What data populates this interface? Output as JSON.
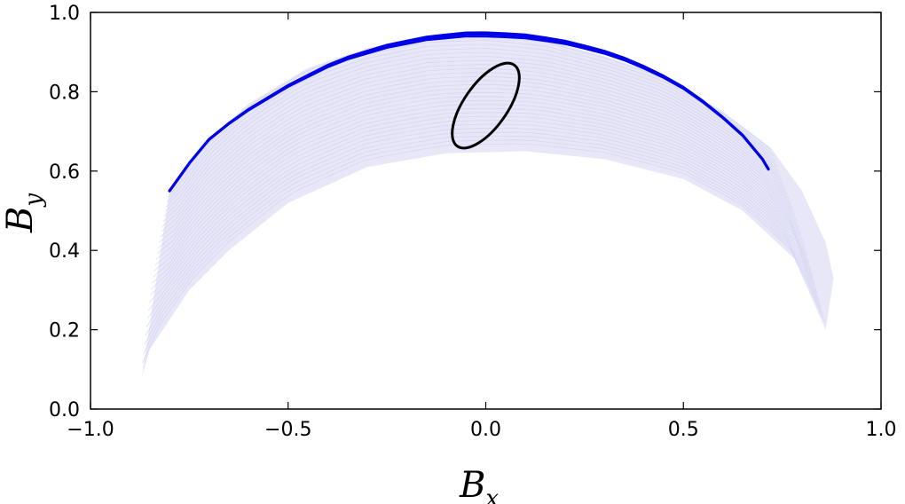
{
  "chart_data": {
    "type": "line",
    "title": "",
    "xlabel": {
      "base": "B",
      "sub": "x"
    },
    "ylabel": {
      "base": "B",
      "sub": "y"
    },
    "xlim": [
      -1.0,
      1.0
    ],
    "ylim": [
      0.0,
      1.0
    ],
    "xticks": [
      -1.0,
      -0.5,
      0.0,
      0.5,
      1.0
    ],
    "xtick_labels": [
      "−1.0",
      "−0.5",
      "0.0",
      "0.5",
      "1.0"
    ],
    "yticks": [
      0.0,
      0.2,
      0.4,
      0.6,
      0.8,
      1.0
    ],
    "ytick_labels": [
      "0.0",
      "0.2",
      "0.4",
      "0.6",
      "0.8",
      "1.0"
    ],
    "grid": false,
    "legend": "none",
    "colors": {
      "ensemble": "#e3e3f7",
      "main": "#0000e6",
      "ellipse": "#000000"
    },
    "series": [
      {
        "role": "ensemble",
        "envelope_upper": [
          [
            -0.8,
            0.55
          ],
          [
            -0.7,
            0.68
          ],
          [
            -0.6,
            0.77
          ],
          [
            -0.45,
            0.86
          ],
          [
            -0.3,
            0.91
          ],
          [
            -0.15,
            0.94
          ],
          [
            0.0,
            0.945
          ],
          [
            0.15,
            0.93
          ],
          [
            0.3,
            0.89
          ],
          [
            0.45,
            0.84
          ],
          [
            0.6,
            0.75
          ],
          [
            0.72,
            0.66
          ],
          [
            0.8,
            0.55
          ],
          [
            0.86,
            0.42
          ],
          [
            0.88,
            0.33
          ]
        ],
        "envelope_lower": [
          [
            0.86,
            0.2
          ],
          [
            0.78,
            0.38
          ],
          [
            0.65,
            0.5
          ],
          [
            0.5,
            0.58
          ],
          [
            0.3,
            0.63
          ],
          [
            0.1,
            0.65
          ],
          [
            -0.1,
            0.645
          ],
          [
            -0.3,
            0.61
          ],
          [
            -0.5,
            0.52
          ],
          [
            -0.65,
            0.4
          ],
          [
            -0.75,
            0.3
          ],
          [
            -0.85,
            0.15
          ],
          [
            -0.87,
            0.08
          ]
        ]
      },
      {
        "role": "main",
        "points": [
          [
            -0.8,
            0.55
          ],
          [
            -0.75,
            0.62
          ],
          [
            -0.7,
            0.68
          ],
          [
            -0.65,
            0.72
          ],
          [
            -0.6,
            0.755
          ],
          [
            -0.55,
            0.785
          ],
          [
            -0.5,
            0.815
          ],
          [
            -0.45,
            0.84
          ],
          [
            -0.4,
            0.865
          ],
          [
            -0.35,
            0.885
          ],
          [
            -0.3,
            0.9
          ],
          [
            -0.25,
            0.915
          ],
          [
            -0.2,
            0.925
          ],
          [
            -0.15,
            0.935
          ],
          [
            -0.1,
            0.94
          ],
          [
            -0.05,
            0.945
          ],
          [
            0.0,
            0.945
          ],
          [
            0.05,
            0.943
          ],
          [
            0.1,
            0.94
          ],
          [
            0.15,
            0.933
          ],
          [
            0.2,
            0.925
          ],
          [
            0.25,
            0.913
          ],
          [
            0.3,
            0.9
          ],
          [
            0.35,
            0.883
          ],
          [
            0.4,
            0.862
          ],
          [
            0.45,
            0.838
          ],
          [
            0.5,
            0.81
          ],
          [
            0.55,
            0.775
          ],
          [
            0.6,
            0.735
          ],
          [
            0.65,
            0.69
          ],
          [
            0.7,
            0.63
          ],
          [
            0.715,
            0.605
          ]
        ]
      },
      {
        "role": "ellipse",
        "center": [
          0.0,
          0.765
        ],
        "rx": 0.055,
        "ry": 0.125,
        "angle_deg": 35
      }
    ]
  }
}
